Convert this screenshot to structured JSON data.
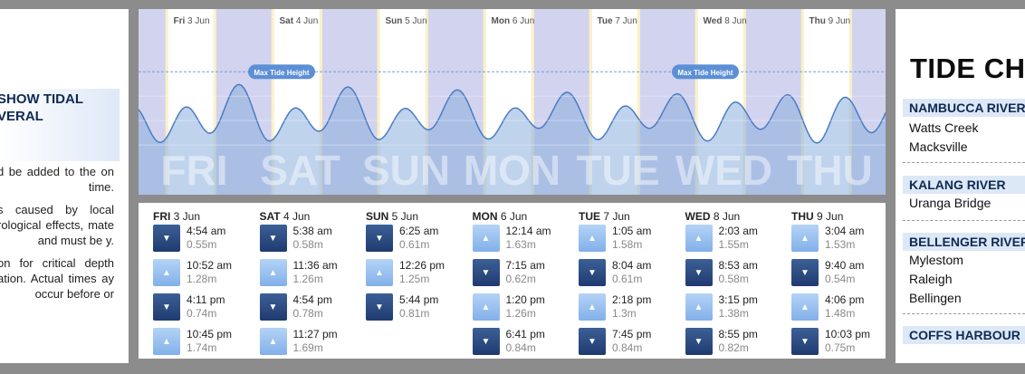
{
  "left_panel": {
    "title_line1": "SHOW TIDAL",
    "title_line2": "VERAL",
    "notes": [
      "d be added to the on time.",
      "s caused by local rological effects, mate and must be y.",
      "on for critical depth ation. Actual times ay occur before or"
    ]
  },
  "chart_data": {
    "type": "area",
    "title": "",
    "xlabel": "",
    "ylabel": "",
    "days": [
      {
        "abbr": "Fri",
        "date": "3 Jun",
        "big": "FRI"
      },
      {
        "abbr": "Sat",
        "date": "4 Jun",
        "big": "SAT"
      },
      {
        "abbr": "Sun",
        "date": "5 Jun",
        "big": "SUN"
      },
      {
        "abbr": "Mon",
        "date": "6 Jun",
        "big": "MON"
      },
      {
        "abbr": "Tue",
        "date": "7 Jun",
        "big": "TUE"
      },
      {
        "abbr": "Wed",
        "date": "8 Jun",
        "big": "WED"
      },
      {
        "abbr": "Thu",
        "date": "9 Jun",
        "big": "THU"
      }
    ],
    "max_label": "Max Tide Height",
    "max_label_days": [
      1,
      5
    ],
    "max_tide_height_m": 2.0,
    "ylim": [
      0,
      2.6
    ],
    "tides": [
      {
        "day": 0,
        "time": "4:54 am",
        "h": 0.55
      },
      {
        "day": 0,
        "time": "10:52 am",
        "h": 1.28
      },
      {
        "day": 0,
        "time": "4:11 pm",
        "h": 0.74
      },
      {
        "day": 0,
        "time": "10:45 pm",
        "h": 1.74
      },
      {
        "day": 1,
        "time": "5:38 am",
        "h": 0.58
      },
      {
        "day": 1,
        "time": "11:36 am",
        "h": 1.26
      },
      {
        "day": 1,
        "time": "4:54 pm",
        "h": 0.78
      },
      {
        "day": 1,
        "time": "11:27 pm",
        "h": 1.69
      },
      {
        "day": 2,
        "time": "6:25 am",
        "h": 0.61
      },
      {
        "day": 2,
        "time": "12:26 pm",
        "h": 1.25
      },
      {
        "day": 2,
        "time": "5:44 pm",
        "h": 0.81
      },
      {
        "day": 3,
        "time": "12:14 am",
        "h": 1.63
      },
      {
        "day": 3,
        "time": "7:15 am",
        "h": 0.62
      },
      {
        "day": 3,
        "time": "1:20 pm",
        "h": 1.26
      },
      {
        "day": 3,
        "time": "6:41 pm",
        "h": 0.84
      },
      {
        "day": 4,
        "time": "1:05 am",
        "h": 1.58
      },
      {
        "day": 4,
        "time": "8:04 am",
        "h": 0.61
      },
      {
        "day": 4,
        "time": "2:18 pm",
        "h": 1.3
      },
      {
        "day": 4,
        "time": "7:45 pm",
        "h": 0.84
      },
      {
        "day": 5,
        "time": "2:03 am",
        "h": 1.55
      },
      {
        "day": 5,
        "time": "8:53 am",
        "h": 0.58
      },
      {
        "day": 5,
        "time": "3:15 pm",
        "h": 1.38
      },
      {
        "day": 5,
        "time": "8:55 pm",
        "h": 0.82
      },
      {
        "day": 6,
        "time": "3:04 am",
        "h": 1.53
      },
      {
        "day": 6,
        "time": "9:40 am",
        "h": 0.54
      },
      {
        "day": 6,
        "time": "4:06 pm",
        "h": 1.48
      },
      {
        "day": 6,
        "time": "10:03 pm",
        "h": 0.75
      }
    ]
  },
  "tide_table": [
    {
      "day": "FRI",
      "date": "3 Jun",
      "tides": [
        {
          "type": "low",
          "time": "4:54 am",
          "height": "0.55m"
        },
        {
          "type": "high",
          "time": "10:52 am",
          "height": "1.28m"
        },
        {
          "type": "low",
          "time": "4:11 pm",
          "height": "0.74m"
        },
        {
          "type": "high",
          "time": "10:45 pm",
          "height": "1.74m"
        }
      ]
    },
    {
      "day": "SAT",
      "date": "4 Jun",
      "tides": [
        {
          "type": "low",
          "time": "5:38 am",
          "height": "0.58m"
        },
        {
          "type": "high",
          "time": "11:36 am",
          "height": "1.26m"
        },
        {
          "type": "low",
          "time": "4:54 pm",
          "height": "0.78m"
        },
        {
          "type": "high",
          "time": "11:27 pm",
          "height": "1.69m"
        }
      ]
    },
    {
      "day": "SUN",
      "date": "5 Jun",
      "tides": [
        {
          "type": "low",
          "time": "6:25 am",
          "height": "0.61m"
        },
        {
          "type": "high",
          "time": "12:26 pm",
          "height": "1.25m"
        },
        {
          "type": "low",
          "time": "5:44 pm",
          "height": "0.81m"
        }
      ]
    },
    {
      "day": "MON",
      "date": "6 Jun",
      "tides": [
        {
          "type": "high",
          "time": "12:14 am",
          "height": "1.63m"
        },
        {
          "type": "low",
          "time": "7:15 am",
          "height": "0.62m"
        },
        {
          "type": "high",
          "time": "1:20 pm",
          "height": "1.26m"
        },
        {
          "type": "low",
          "time": "6:41 pm",
          "height": "0.84m"
        }
      ]
    },
    {
      "day": "TUE",
      "date": "7 Jun",
      "tides": [
        {
          "type": "high",
          "time": "1:05 am",
          "height": "1.58m"
        },
        {
          "type": "low",
          "time": "8:04 am",
          "height": "0.61m"
        },
        {
          "type": "high",
          "time": "2:18 pm",
          "height": "1.3m"
        },
        {
          "type": "low",
          "time": "7:45 pm",
          "height": "0.84m"
        }
      ]
    },
    {
      "day": "WED",
      "date": "8 Jun",
      "tides": [
        {
          "type": "high",
          "time": "2:03 am",
          "height": "1.55m"
        },
        {
          "type": "low",
          "time": "8:53 am",
          "height": "0.58m"
        },
        {
          "type": "high",
          "time": "3:15 pm",
          "height": "1.38m"
        },
        {
          "type": "low",
          "time": "8:55 pm",
          "height": "0.82m"
        }
      ]
    },
    {
      "day": "THU",
      "date": "9 Jun",
      "tides": [
        {
          "type": "high",
          "time": "3:04 am",
          "height": "1.53m"
        },
        {
          "type": "low",
          "time": "9:40 am",
          "height": "0.54m"
        },
        {
          "type": "high",
          "time": "4:06 pm",
          "height": "1.48m"
        },
        {
          "type": "low",
          "time": "10:03 pm",
          "height": "0.75m"
        }
      ]
    }
  ],
  "right_panel": {
    "title": "TIDE CH",
    "groups": [
      {
        "name": "NAMBUCCA RIVER",
        "items": [
          "Watts Creek",
          "Macksville"
        ]
      },
      {
        "name": "KALANG RIVER",
        "items": [
          "Uranga Bridge"
        ]
      },
      {
        "name": "BELLENGER RIVER",
        "items": [
          "Mylestom",
          "Raleigh",
          "Bellingen"
        ]
      },
      {
        "name": "COFFS HARBOUR",
        "items": []
      }
    ]
  },
  "colors": {
    "night": "#d2d3ee",
    "day": "#ffffff",
    "dusk": "#fbf1c6",
    "wave_fill": "#8aaede",
    "wave_line": "#4a7cc4",
    "label_pill": "#5c8fd6",
    "high_arrow": "#8fb8ec",
    "low_arrow": "#2b4a80",
    "header_bg": "#dde8f7",
    "header_text": "#0f2a53"
  }
}
